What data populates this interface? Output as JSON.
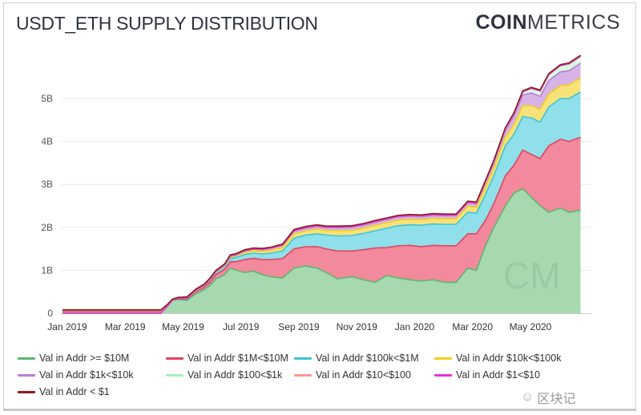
{
  "chart_data": {
    "type": "area",
    "stacked": true,
    "title": "USDT_ETH SUPPLY DISTRIBUTION",
    "brand": {
      "bold": "COIN",
      "light": "METRICS"
    },
    "xlabel": "",
    "ylabel": "",
    "ylim": [
      0,
      5.9
    ],
    "yticks": [
      {
        "v": 0,
        "label": "0"
      },
      {
        "v": 1,
        "label": "1B"
      },
      {
        "v": 2,
        "label": "2B"
      },
      {
        "v": 3,
        "label": "3B"
      },
      {
        "v": 4,
        "label": "4B"
      },
      {
        "v": 5,
        "label": "5B"
      }
    ],
    "xlim": [
      0,
      17.9
    ],
    "xticks": [
      {
        "v": 0,
        "label": "Jan 2019"
      },
      {
        "v": 2,
        "label": "Mar 2019"
      },
      {
        "v": 4,
        "label": "May 2019"
      },
      {
        "v": 6,
        "label": "Jul 2019"
      },
      {
        "v": 8,
        "label": "Sep 2019"
      },
      {
        "v": 10,
        "label": "Nov 2019"
      },
      {
        "v": 12,
        "label": "Jan 2020"
      },
      {
        "v": 14,
        "label": "Mar 2020"
      },
      {
        "v": 16,
        "label": "May 2020"
      }
    ],
    "grid": true,
    "legend_position": "bottom",
    "watermark": "CM",
    "x": [
      0,
      3.4,
      3.6,
      3.8,
      4.0,
      4.3,
      4.6,
      4.9,
      5.1,
      5.3,
      5.6,
      5.8,
      6.0,
      6.3,
      6.6,
      6.9,
      7.2,
      7.6,
      8.0,
      8.4,
      8.8,
      9.1,
      9.5,
      10.0,
      10.4,
      10.8,
      11.2,
      11.6,
      12.0,
      12.4,
      12.8,
      13.2,
      13.6,
      14.0,
      14.3,
      14.6,
      14.9,
      15.3,
      15.6,
      15.9,
      16.2,
      16.5,
      16.8,
      17.2,
      17.5,
      17.9
    ],
    "series": [
      {
        "name": "Val in Addr >= $10M",
        "color": "#5cb770",
        "fill": "#a6d9b0",
        "values": [
          0,
          0,
          0.15,
          0.3,
          0.32,
          0.3,
          0.45,
          0.55,
          0.65,
          0.8,
          0.9,
          1.05,
          1.0,
          0.95,
          0.98,
          0.9,
          0.85,
          0.82,
          1.05,
          1.1,
          1.05,
          0.95,
          0.8,
          0.85,
          0.78,
          0.72,
          0.88,
          0.82,
          0.78,
          0.75,
          0.78,
          0.72,
          0.72,
          1.05,
          1.0,
          1.55,
          2.0,
          2.5,
          2.8,
          2.9,
          2.7,
          2.5,
          2.35,
          2.45,
          2.35,
          2.4
        ]
      },
      {
        "name": "Val in Addr $1M<$10M",
        "color": "#e0445f",
        "fill": "#f2899c",
        "values": [
          0,
          0,
          0,
          0.01,
          0.02,
          0.03,
          0.05,
          0.06,
          0.08,
          0.1,
          0.12,
          0.15,
          0.2,
          0.3,
          0.3,
          0.35,
          0.4,
          0.45,
          0.45,
          0.45,
          0.5,
          0.55,
          0.65,
          0.6,
          0.7,
          0.8,
          0.65,
          0.75,
          0.8,
          0.8,
          0.8,
          0.85,
          0.85,
          0.8,
          0.85,
          0.6,
          0.55,
          0.7,
          0.65,
          0.9,
          1.0,
          1.1,
          1.55,
          1.6,
          1.65,
          1.7
        ]
      },
      {
        "name": "Val in Addr $100k<$1M",
        "color": "#3fc4d6",
        "fill": "#8fe0ea",
        "values": [
          0,
          0,
          0,
          0,
          0.01,
          0.02,
          0.02,
          0.03,
          0.04,
          0.05,
          0.06,
          0.08,
          0.1,
          0.12,
          0.12,
          0.13,
          0.15,
          0.18,
          0.25,
          0.27,
          0.3,
          0.32,
          0.35,
          0.36,
          0.38,
          0.4,
          0.45,
          0.47,
          0.48,
          0.5,
          0.5,
          0.5,
          0.5,
          0.5,
          0.48,
          0.6,
          0.65,
          0.7,
          0.72,
          0.78,
          0.85,
          0.85,
          0.9,
          0.95,
          1.0,
          1.05
        ]
      },
      {
        "name": "Val in Addr $10k<$100k",
        "color": "#f2cf1d",
        "fill": "#f7e27a",
        "values": [
          0,
          0,
          0,
          0,
          0,
          0.01,
          0.01,
          0.01,
          0.02,
          0.02,
          0.03,
          0.03,
          0.04,
          0.05,
          0.06,
          0.06,
          0.07,
          0.08,
          0.1,
          0.1,
          0.11,
          0.11,
          0.12,
          0.12,
          0.12,
          0.13,
          0.13,
          0.13,
          0.13,
          0.13,
          0.13,
          0.13,
          0.13,
          0.14,
          0.14,
          0.16,
          0.18,
          0.2,
          0.22,
          0.25,
          0.28,
          0.3,
          0.3,
          0.3,
          0.32,
          0.33
        ]
      },
      {
        "name": "Val in Addr $1k<$10k",
        "color": "#b67fd3",
        "fill": "#d7b3e8",
        "values": [
          0,
          0,
          0,
          0,
          0,
          0,
          0.01,
          0.01,
          0.01,
          0.01,
          0.02,
          0.02,
          0.02,
          0.03,
          0.03,
          0.04,
          0.04,
          0.05,
          0.06,
          0.06,
          0.06,
          0.06,
          0.07,
          0.07,
          0.07,
          0.07,
          0.07,
          0.07,
          0.07,
          0.07,
          0.07,
          0.07,
          0.07,
          0.08,
          0.08,
          0.1,
          0.12,
          0.15,
          0.2,
          0.25,
          0.3,
          0.3,
          0.32,
          0.32,
          0.33,
          0.34
        ]
      },
      {
        "name": "Val in Addr $100<$1k",
        "color": "#a6f2b9",
        "fill": "#d8f8e0",
        "values": [
          0,
          0,
          0,
          0,
          0,
          0,
          0,
          0,
          0,
          0,
          0,
          0.01,
          0.01,
          0.01,
          0.01,
          0.01,
          0.01,
          0.01,
          0.02,
          0.02,
          0.02,
          0.02,
          0.02,
          0.02,
          0.02,
          0.02,
          0.02,
          0.02,
          0.02,
          0.02,
          0.02,
          0.02,
          0.02,
          0.02,
          0.02,
          0.03,
          0.03,
          0.04,
          0.05,
          0.07,
          0.1,
          0.12,
          0.13,
          0.14,
          0.15,
          0.16
        ]
      },
      {
        "name": "Val in Addr $10<$100",
        "color": "#f79a8a",
        "fill": "#fbc8bf",
        "values": [
          0,
          0,
          0,
          0,
          0,
          0,
          0,
          0,
          0,
          0,
          0,
          0,
          0,
          0,
          0,
          0,
          0,
          0,
          0,
          0,
          0,
          0,
          0,
          0,
          0,
          0,
          0,
          0,
          0,
          0,
          0,
          0,
          0,
          0,
          0,
          0.01,
          0.01,
          0.01,
          0.01,
          0.01,
          0.01,
          0.01,
          0.01,
          0.01,
          0.01,
          0.01
        ]
      },
      {
        "name": "Val in Addr $1<$10",
        "color": "#e833d9",
        "fill": "#f29be9",
        "values": [
          0,
          0,
          0,
          0,
          0,
          0,
          0,
          0,
          0,
          0,
          0,
          0,
          0,
          0,
          0,
          0,
          0,
          0,
          0,
          0,
          0,
          0,
          0,
          0,
          0,
          0,
          0,
          0,
          0,
          0,
          0,
          0,
          0,
          0,
          0,
          0,
          0,
          0,
          0,
          0,
          0,
          0,
          0,
          0,
          0,
          0
        ]
      },
      {
        "name": "Val in Addr < $1",
        "color": "#8b1a1f",
        "fill": "#c07a7e",
        "values": [
          0.08,
          0.08,
          0.04,
          0.02,
          0.02,
          0.02,
          0.02,
          0.02,
          0.02,
          0.02,
          0.02,
          0.02,
          0.02,
          0.02,
          0.02,
          0.02,
          0.02,
          0.02,
          0.02,
          0.02,
          0.02,
          0.02,
          0.02,
          0.02,
          0.02,
          0.02,
          0.02,
          0.02,
          0.02,
          0.02,
          0.02,
          0.02,
          0.02,
          0.02,
          0.02,
          0.02,
          0.02,
          0.02,
          0.02,
          0.02,
          0.02,
          0.02,
          0.02,
          0.02,
          0.02,
          0.02
        ]
      }
    ]
  },
  "watermark_text": "区块记"
}
